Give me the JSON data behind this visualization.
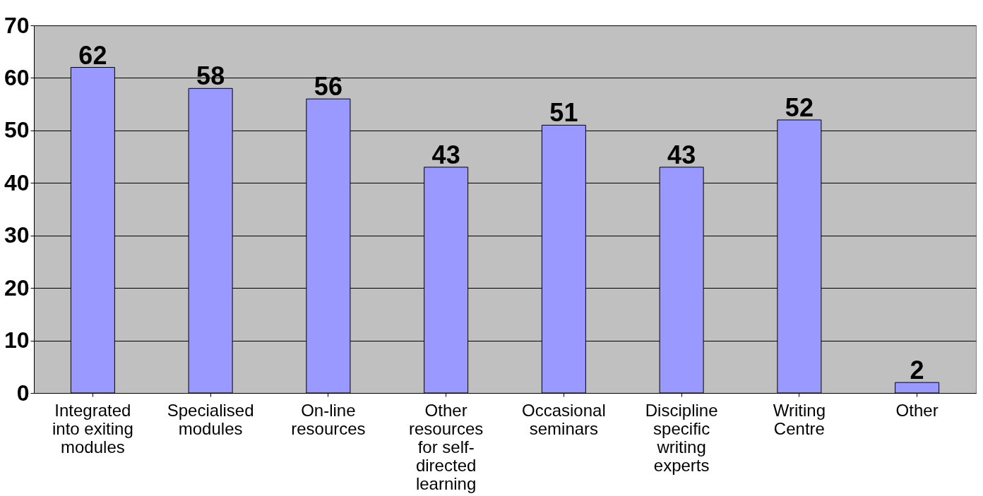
{
  "chart_data": {
    "type": "bar",
    "categories": [
      "Integrated into exiting modules",
      "Specialised modules",
      "On-line resources",
      "Other resources for self-directed learning",
      "Occasional seminars",
      "Discipline specific writing experts",
      "Writing Centre",
      "Other"
    ],
    "values": [
      62,
      58,
      56,
      43,
      51,
      43,
      52,
      2
    ],
    "color": "#9999ff",
    "ylim": [
      0,
      70
    ],
    "yticks": [
      0,
      10,
      20,
      30,
      40,
      50,
      60,
      70
    ],
    "grid": "y",
    "data_labels": true
  }
}
